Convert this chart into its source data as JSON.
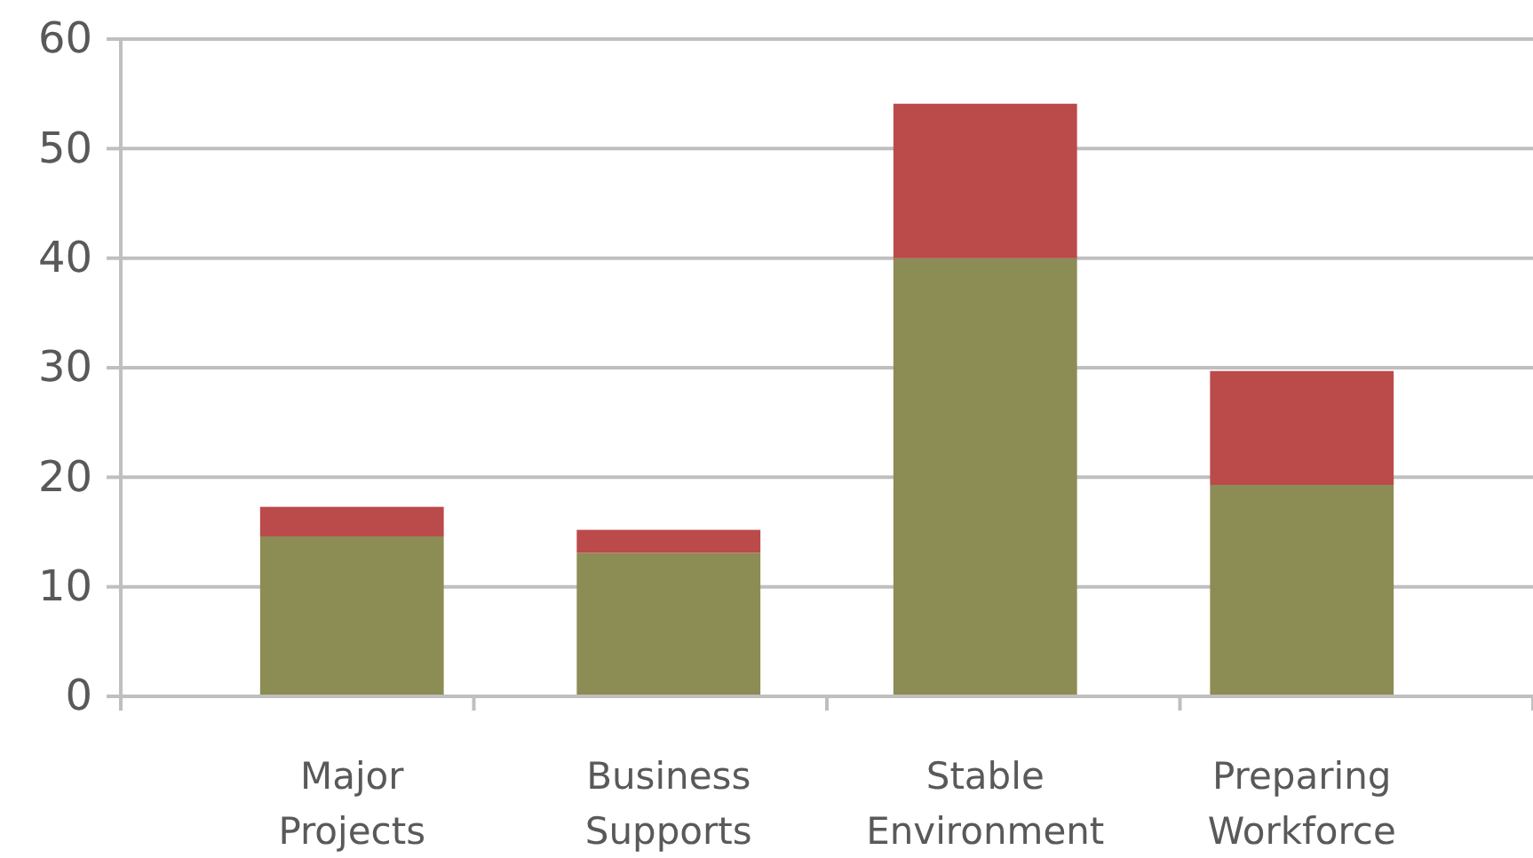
{
  "chart_data": {
    "type": "bar",
    "stacked": true,
    "categories": [
      "Major Projects",
      "Business Supports",
      "Stable Environment",
      "Preparing Workforce"
    ],
    "series": [
      {
        "color": "#8c8c55",
        "values": [
          14.6,
          13.1,
          40.0,
          19.3
        ]
      },
      {
        "color": "#bb4a4a",
        "values": [
          2.7,
          2.1,
          14.1,
          10.4
        ]
      }
    ],
    "ylim": [
      0,
      60
    ],
    "yticks": [
      0,
      10,
      20,
      30,
      40,
      50,
      60
    ],
    "grid": "y"
  }
}
